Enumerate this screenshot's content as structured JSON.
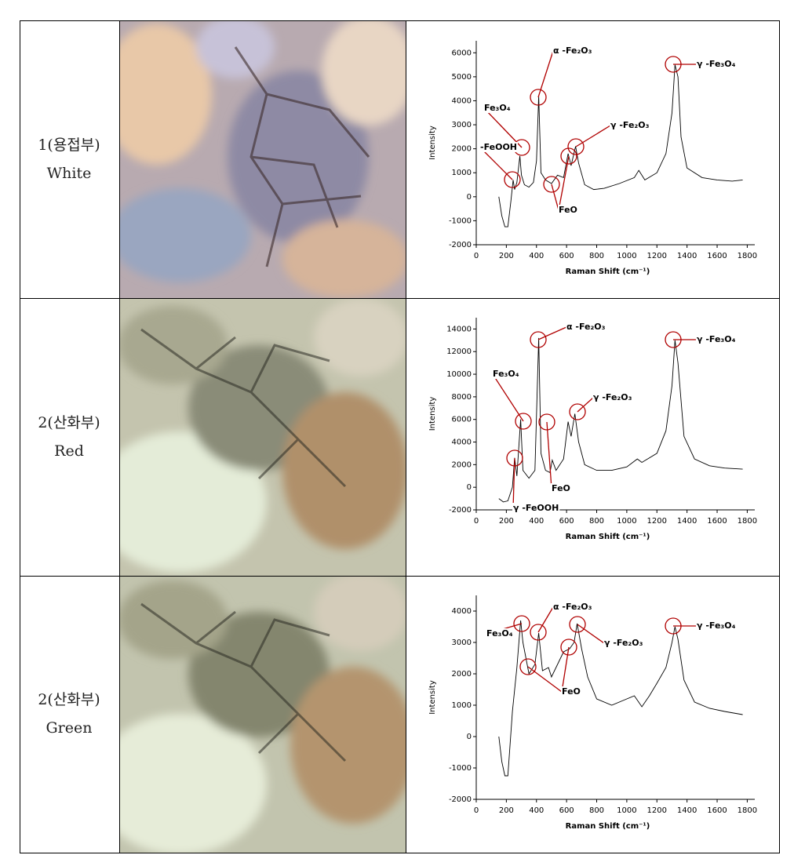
{
  "table": {
    "rows": [
      {
        "site": "1(용접부)",
        "color": "White"
      },
      {
        "site": "2(산화부)",
        "color": "Red"
      },
      {
        "site": "2(산화부)",
        "color": "Green"
      }
    ]
  },
  "chart_data": [
    {
      "type": "line",
      "xlabel": "Raman Shift (cm⁻¹)",
      "ylabel": "Intensity",
      "color": "#000000",
      "x": [
        150,
        170,
        190,
        210,
        230,
        245,
        255,
        270,
        290,
        300,
        320,
        350,
        380,
        400,
        415,
        430,
        460,
        500,
        540,
        580,
        610,
        630,
        660,
        680,
        720,
        780,
        850,
        950,
        1050,
        1080,
        1120,
        1200,
        1260,
        1300,
        1320,
        1340,
        1360,
        1400,
        1500,
        1600,
        1700,
        1770
      ],
      "values": [
        0,
        -800,
        -1250,
        -1250,
        -200,
        700,
        300,
        600,
        1700,
        900,
        500,
        400,
        600,
        1500,
        4200,
        1000,
        700,
        550,
        900,
        800,
        1800,
        1300,
        2100,
        1400,
        500,
        300,
        350,
        550,
        800,
        1100,
        700,
        1000,
        1800,
        3500,
        5500,
        5000,
        2500,
        1200,
        800,
        700,
        650,
        700
      ],
      "xlim": [
        0,
        1850
      ],
      "xticks": [
        0,
        200,
        400,
        600,
        800,
        1000,
        1200,
        1400,
        1600,
        1800
      ],
      "ylim": [
        -2000,
        6500
      ],
      "yticks": [
        -2000,
        -1000,
        0,
        1000,
        2000,
        3000,
        4000,
        5000,
        6000
      ],
      "annotations": [
        "Fe₃O₄",
        "α -Fe₂O₃",
        "-FeOOH",
        "γ -Fe₂O₃",
        "FeO",
        "γ -Fe₃O₄"
      ]
    },
    {
      "type": "line",
      "xlabel": "Raman Shift (cm⁻¹)",
      "ylabel": "Intensity",
      "color": "#000000",
      "x": [
        150,
        180,
        210,
        240,
        255,
        270,
        295,
        310,
        350,
        390,
        415,
        430,
        460,
        490,
        505,
        530,
        580,
        610,
        630,
        655,
        680,
        720,
        800,
        900,
        1000,
        1070,
        1100,
        1200,
        1260,
        1300,
        1320,
        1340,
        1380,
        1450,
        1550,
        1650,
        1770
      ],
      "values": [
        -1000,
        -1300,
        -1200,
        0,
        2600,
        1000,
        6000,
        1500,
        800,
        1500,
        13200,
        3000,
        1500,
        1300,
        2400,
        1500,
        2500,
        5800,
        4500,
        6500,
        4000,
        2000,
        1500,
        1500,
        1800,
        2500,
        2200,
        3000,
        5000,
        9000,
        13000,
        11000,
        4500,
        2500,
        1900,
        1700,
        1600
      ],
      "xlim": [
        0,
        1850
      ],
      "xticks": [
        0,
        200,
        400,
        600,
        800,
        1000,
        1200,
        1400,
        1600,
        1800
      ],
      "ylim": [
        -2000,
        15000
      ],
      "yticks": [
        -2000,
        0,
        2000,
        4000,
        6000,
        8000,
        10000,
        12000,
        14000
      ],
      "annotations": [
        "α -Fe₂O₃",
        "Fe₃O₄",
        "γ -Fe₂O₃",
        "FeO",
        "γ -FeOOH",
        "γ -Fe₃O₄"
      ]
    },
    {
      "type": "line",
      "xlabel": "Raman Shift (cm⁻¹)",
      "ylabel": "Intensity",
      "color": "#000000",
      "x": [
        150,
        170,
        190,
        210,
        240,
        270,
        295,
        310,
        350,
        390,
        415,
        440,
        480,
        500,
        540,
        580,
        620,
        650,
        670,
        700,
        740,
        800,
        900,
        1000,
        1050,
        1100,
        1150,
        1200,
        1260,
        1300,
        1320,
        1340,
        1380,
        1450,
        1550,
        1650,
        1770
      ],
      "values": [
        0,
        -800,
        -1250,
        -1250,
        800,
        2200,
        3700,
        3000,
        2000,
        2300,
        3300,
        2100,
        2200,
        1900,
        2300,
        2700,
        2800,
        3000,
        3600,
        2800,
        1900,
        1200,
        1000,
        1200,
        1300,
        950,
        1300,
        1700,
        2200,
        3000,
        3500,
        3100,
        1800,
        1100,
        900,
        800,
        700
      ],
      "xlim": [
        0,
        1850
      ],
      "xticks": [
        0,
        200,
        400,
        600,
        800,
        1000,
        1200,
        1400,
        1600,
        1800
      ],
      "ylim": [
        -2000,
        4500
      ],
      "yticks": [
        -2000,
        -1000,
        0,
        1000,
        2000,
        3000,
        4000
      ],
      "annotations": [
        "Fe₃O₄",
        "α -Fe₂O₃",
        "FeO",
        "γ -Fe₂O₃",
        "γ -Fe₃O₄"
      ]
    }
  ]
}
